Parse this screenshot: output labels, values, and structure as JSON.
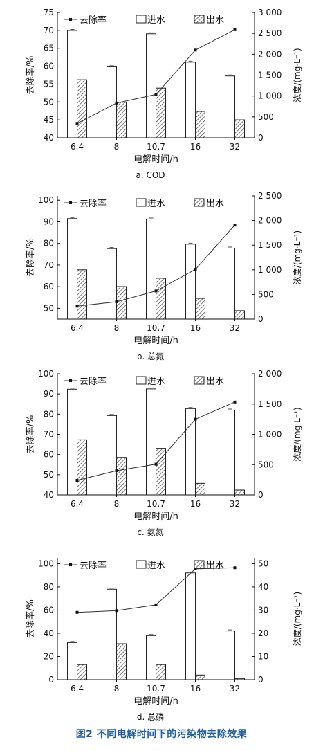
{
  "figure_caption": "图2   不同电解时间下的污染物去除效果",
  "legend": {
    "removal": "去除率",
    "influent": "进水",
    "effluent": "出水"
  },
  "chart_data": [
    {
      "type": "bar",
      "subtitle": "a. COD",
      "categories": [
        "6.4",
        "8",
        "10.7",
        "16",
        "32"
      ],
      "xlabel": "电解时间/h",
      "ylabel_left": "去除率/%",
      "ylabel_right": "浓度/(mg·L⁻¹)",
      "ylim_left": [
        40,
        75
      ],
      "ticks_left": [
        40,
        45,
        50,
        55,
        60,
        65,
        70,
        75
      ],
      "ylim_right": [
        0,
        3000
      ],
      "ticks_right": [
        0,
        500,
        1000,
        1500,
        2000,
        2500,
        3000
      ],
      "tick_labels_right": [
        "0",
        "500",
        "1 000",
        "1 500",
        "2 000",
        "2 500",
        "3 000"
      ],
      "series": [
        {
          "name": "进水",
          "axis": "right",
          "kind": "bar",
          "pattern": "open",
          "values": [
            2570,
            1700,
            2490,
            1810,
            1480
          ]
        },
        {
          "name": "出水",
          "axis": "right",
          "kind": "bar",
          "pattern": "hatched",
          "values": [
            1390,
            850,
            1190,
            630,
            430
          ]
        },
        {
          "name": "去除率",
          "axis": "left",
          "kind": "line",
          "values": [
            44,
            49.7,
            52.1,
            64.5,
            70.2
          ]
        }
      ]
    },
    {
      "type": "bar",
      "subtitle": "b. 总氮",
      "categories": [
        "6.4",
        "8",
        "10.7",
        "16",
        "32"
      ],
      "xlabel": "电解时间/h",
      "ylabel_left": "去除率/%",
      "ylabel_right": "浓度/(mg·L⁻¹)",
      "ylim_left": [
        45,
        102
      ],
      "ticks_left": [
        50,
        60,
        70,
        80,
        90,
        100
      ],
      "ylim_right": [
        0,
        2500
      ],
      "ticks_right": [
        0,
        500,
        1000,
        1500,
        2000,
        2500
      ],
      "tick_labels_right": [
        "0",
        "500",
        "1 000",
        "1 500",
        "2 000",
        "2 500"
      ],
      "series": [
        {
          "name": "进水",
          "axis": "right",
          "kind": "bar",
          "pattern": "open",
          "values": [
            2040,
            1430,
            2030,
            1520,
            1440
          ]
        },
        {
          "name": "出水",
          "axis": "right",
          "kind": "bar",
          "pattern": "hatched",
          "values": [
            1000,
            660,
            830,
            420,
            170
          ]
        },
        {
          "name": "去除率",
          "axis": "left",
          "kind": "line",
          "values": [
            51,
            53,
            58,
            68,
            88.5
          ]
        }
      ]
    },
    {
      "type": "bar",
      "subtitle": "c. 氨氮",
      "categories": [
        "6.4",
        "8",
        "10.7",
        "16",
        "32"
      ],
      "xlabel": "电解时间/h",
      "ylabel_left": "去除率/%",
      "ylabel_right": "浓度/(mg·L⁻¹)",
      "ylim_left": [
        40,
        100
      ],
      "ticks_left": [
        40,
        50,
        60,
        70,
        80,
        90,
        100
      ],
      "ylim_right": [
        0,
        2000
      ],
      "ticks_right": [
        0,
        500,
        1000,
        1500,
        2000
      ],
      "tick_labels_right": [
        "0",
        "500",
        "1 000",
        "1 500",
        "2 000"
      ],
      "series": [
        {
          "name": "进水",
          "axis": "right",
          "kind": "bar",
          "pattern": "open",
          "values": [
            1745,
            1310,
            1750,
            1425,
            1400
          ]
        },
        {
          "name": "出水",
          "axis": "right",
          "kind": "bar",
          "pattern": "hatched",
          "values": [
            910,
            620,
            770,
            190,
            80
          ]
        },
        {
          "name": "去除率",
          "axis": "left",
          "kind": "line",
          "values": [
            47.2,
            52,
            55.2,
            77.5,
            86
          ]
        }
      ]
    },
    {
      "type": "bar",
      "subtitle": "d. 总磷",
      "categories": [
        "6.4",
        "8",
        "10.7",
        "16",
        "32"
      ],
      "xlabel": "电解时间/h",
      "ylabel_left": "去除率/%",
      "ylabel_right": "浓度/(mg·L⁻¹)",
      "ylim_left": [
        0,
        105
      ],
      "ticks_left": [
        0,
        20,
        40,
        60,
        80,
        100
      ],
      "ylim_right": [
        0,
        52.5
      ],
      "ticks_right": [
        0,
        10,
        20,
        30,
        40,
        50
      ],
      "tick_labels_right": [
        "0",
        "10",
        "20",
        "30",
        "40",
        "50"
      ],
      "series": [
        {
          "name": "进水",
          "axis": "right",
          "kind": "bar",
          "pattern": "open",
          "values": [
            16,
            39,
            19,
            46,
            21
          ]
        },
        {
          "name": "出水",
          "axis": "right",
          "kind": "bar",
          "pattern": "hatched",
          "values": [
            6.5,
            15.5,
            6.5,
            2,
            0.5
          ]
        },
        {
          "name": "去除率",
          "axis": "left",
          "kind": "line",
          "values": [
            58,
            59.5,
            64.5,
            95.5,
            96.5
          ]
        }
      ]
    }
  ]
}
